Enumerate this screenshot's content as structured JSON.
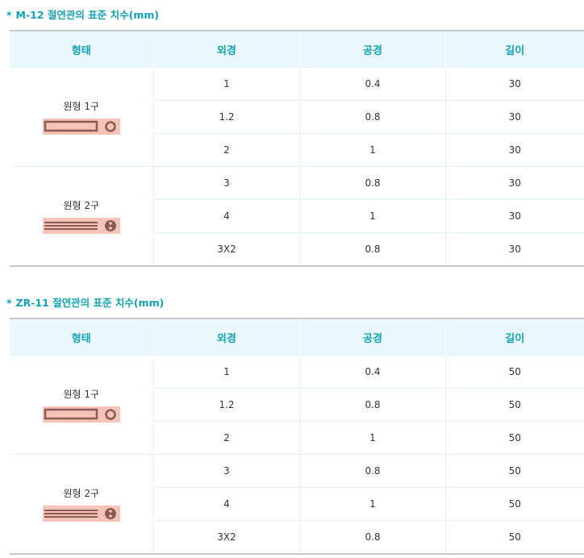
{
  "colors": {
    "accent": "#11a3b4",
    "header_bg": "#eaf7fc",
    "tube_fill": "#f5c4b8",
    "tube_stroke": "#8a5a55"
  },
  "sections": [
    {
      "bullet": "*",
      "title": "M-12 절연관의 표준 치수(mm)",
      "headers": [
        "형태",
        "외경",
        "공경",
        "길이"
      ],
      "groups": [
        {
          "shape": "원형 1구",
          "icon": "single-bore-tube-icon",
          "rows": [
            [
              "1",
              "0.4",
              "30"
            ],
            [
              "1.2",
              "0.8",
              "30"
            ],
            [
              "2",
              "1",
              "30"
            ]
          ]
        },
        {
          "shape": "원형 2구",
          "icon": "double-bore-tube-icon",
          "rows": [
            [
              "3",
              "0.8",
              "30"
            ],
            [
              "4",
              "1",
              "30"
            ],
            [
              "3X2",
              "0.8",
              "30"
            ]
          ]
        }
      ]
    },
    {
      "bullet": "*",
      "title": "ZR-11 절연관의 표준 치수(mm)",
      "headers": [
        "형태",
        "외경",
        "공경",
        "길이"
      ],
      "groups": [
        {
          "shape": "원형 1구",
          "icon": "single-bore-tube-icon",
          "rows": [
            [
              "1",
              "0.4",
              "50"
            ],
            [
              "1.2",
              "0.8",
              "50"
            ],
            [
              "2",
              "1",
              "50"
            ]
          ]
        },
        {
          "shape": "원형 2구",
          "icon": "double-bore-tube-icon",
          "rows": [
            [
              "3",
              "0.8",
              "50"
            ],
            [
              "4",
              "1",
              "50"
            ],
            [
              "3X2",
              "0.8",
              "50"
            ]
          ]
        }
      ]
    }
  ]
}
